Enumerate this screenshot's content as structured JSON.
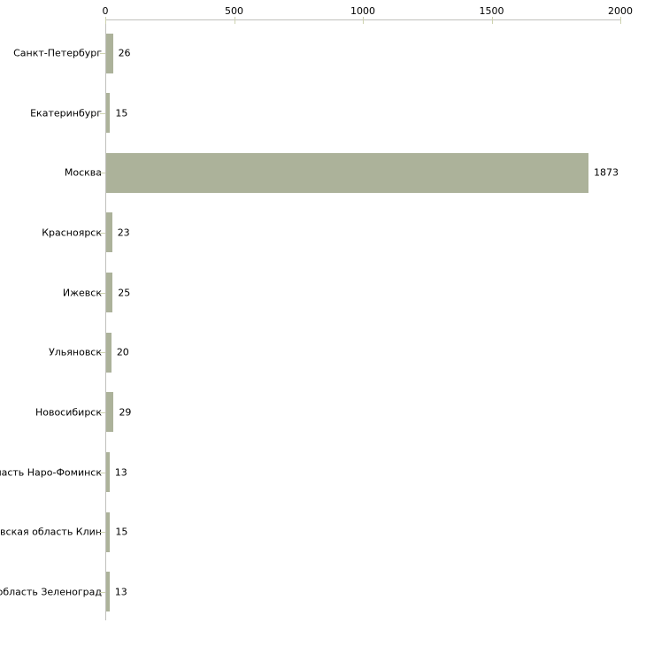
{
  "chart_data": {
    "type": "bar",
    "orientation": "horizontal",
    "title": "",
    "xlabel": "",
    "ylabel": "",
    "categories": [
      "Санкт-Петербург",
      "Екатеринбург",
      "Москва",
      "Красноярск",
      "Ижевск",
      "Ульяновск",
      "Новосибирск",
      "бласть Наро-Фоминск",
      "овская область Клин",
      "я область Зеленоград"
    ],
    "values": [
      26,
      15,
      1873,
      23,
      25,
      20,
      29,
      13,
      15,
      13
    ],
    "value_labels": [
      "26",
      "15",
      "1873",
      "23",
      "25",
      "20",
      "29",
      "13",
      "15",
      "13"
    ],
    "xlim": [
      0,
      2000
    ],
    "x_ticks": [
      0,
      500,
      1000,
      1500,
      2000
    ],
    "x_tick_labels": [
      "0",
      "500",
      "1000",
      "1500",
      "2000"
    ],
    "axis_position": "top",
    "grid": false,
    "legend": null,
    "colors": {
      "bar_fill": "#acb29a",
      "axis_line": "#c0c0bc",
      "tick_mark": "#cdd2af",
      "text": "#000000",
      "background": "#ffffff"
    }
  }
}
